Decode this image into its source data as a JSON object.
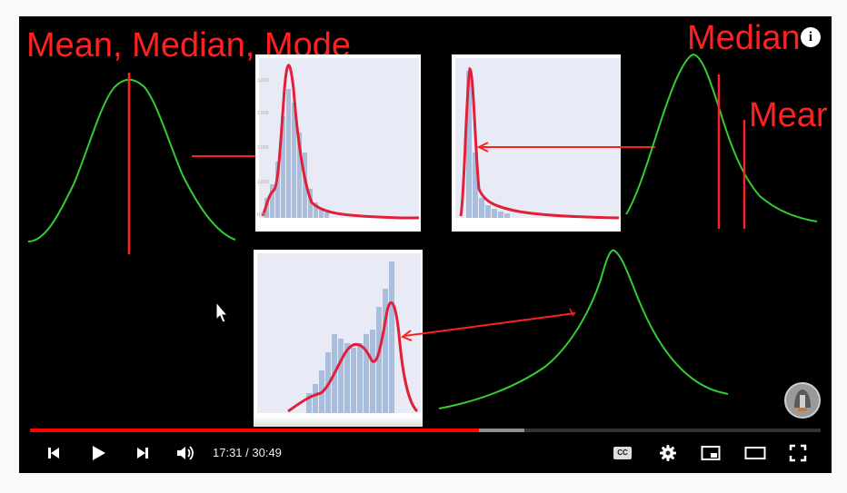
{
  "video": {
    "overlay_title": "Mean, Median, Mode",
    "annotation_median": "Median",
    "annotation_mean": "Mear"
  },
  "info_button": {
    "label": "i"
  },
  "player": {
    "current_time": "17:31",
    "duration": "30:49",
    "time_display": "17:31 / 30:49",
    "progress_fraction": 0.568,
    "buffered_fraction": 0.625,
    "cc_label": "CC",
    "accent_color": "#ff0000"
  },
  "icons": {
    "previous": "skip-previous-icon",
    "play": "play-icon",
    "next": "skip-next-icon",
    "volume": "volume-icon",
    "captions": "captions-icon",
    "settings": "settings-gear-icon",
    "miniplayer": "miniplayer-icon",
    "theater": "theater-mode-icon",
    "fullscreen": "fullscreen-icon"
  }
}
